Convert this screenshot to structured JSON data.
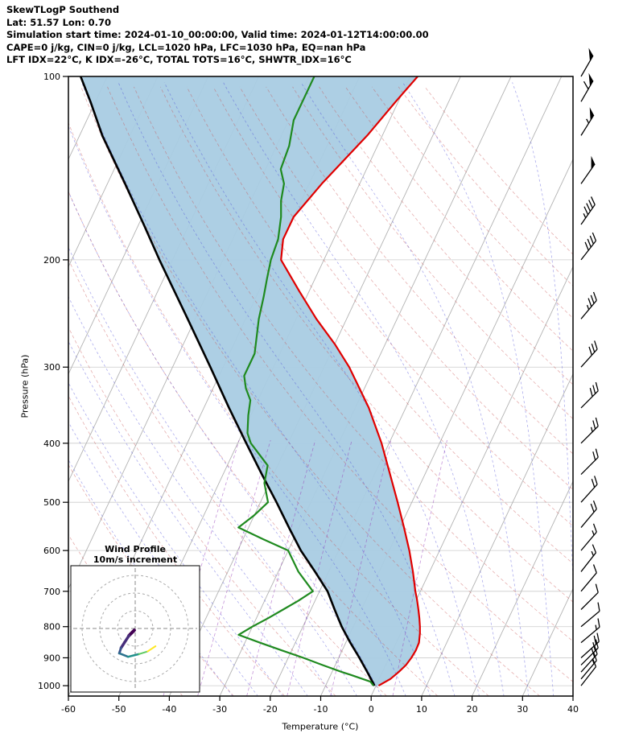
{
  "header": {
    "title": "SkewTLogP Southend",
    "location": "Lat: 51.57   Lon: 0.70",
    "times": "Simulation start time: 2024-01-10_00:00:00, Valid time: 2024-01-12T14:00:00.00",
    "indices1": "CAPE=0 j/kg, CIN=0 j/kg, LCL=1020 hPa, LFC=1030 hPa, EQ=nan hPa",
    "indices2": "LFT IDX=22°C, K IDX=-26°C, TOTAL TOTS=16°C, SHWTR_IDX=16°C"
  },
  "chart_data": {
    "type": "line",
    "subtype": "skew-t-log-p",
    "title": "SkewTLogP Southend",
    "xlabel": "Temperature (°C)",
    "ylabel": "Pressure (hPa)",
    "x_range": [
      -60,
      40
    ],
    "x_ticks": [
      -60,
      -50,
      -40,
      -30,
      -20,
      -10,
      0,
      10,
      20,
      30,
      40
    ],
    "p_ticks": [
      100,
      200,
      300,
      400,
      500,
      600,
      700,
      800,
      900,
      1000
    ],
    "p_range": [
      100,
      1040
    ],
    "colors": {
      "temperature": "#e00000",
      "dewpoint": "#1f8a1f",
      "parcel": "#000000",
      "shading": "#a9cce3",
      "isotherm": "#b3b3b3",
      "pressure_grid": "#cccccc",
      "dry_adiabat": "rgba(199,77,77,0.45)",
      "moist_adiabat": "rgba(72,72,214,0.45)",
      "mixing_ratio": "rgba(150,60,185,0.55)",
      "barb": "#000000"
    },
    "background": {
      "isotherms": {
        "start": -120,
        "end": 40,
        "step": 10
      },
      "dry_adiabats": {
        "theta_start": -40,
        "theta_end": 160,
        "step": 10
      },
      "moist_adiabats": {
        "t0_start": -30,
        "t0_end": 40,
        "step": 5
      },
      "mixing_ratio_gkg": [
        0.1,
        0.2,
        0.5,
        1,
        2,
        5
      ]
    },
    "series": [
      {
        "name": "temperature",
        "points": [
          [
            1000,
            0.5
          ],
          [
            975,
            2.2
          ],
          [
            950,
            3.2
          ],
          [
            925,
            4.0
          ],
          [
            900,
            4.4
          ],
          [
            875,
            4.6
          ],
          [
            850,
            4.5
          ],
          [
            820,
            3.8
          ],
          [
            800,
            3.2
          ],
          [
            775,
            2.3
          ],
          [
            750,
            1.3
          ],
          [
            720,
            0.0
          ],
          [
            700,
            -1.0
          ],
          [
            650,
            -3.3
          ],
          [
            600,
            -6.0
          ],
          [
            550,
            -9.2
          ],
          [
            500,
            -12.8
          ],
          [
            450,
            -16.9
          ],
          [
            400,
            -21.5
          ],
          [
            350,
            -27.3
          ],
          [
            325,
            -31.0
          ],
          [
            300,
            -35.0
          ],
          [
            275,
            -40.0
          ],
          [
            250,
            -46.0
          ],
          [
            225,
            -52.0
          ],
          [
            200,
            -58.5
          ],
          [
            185,
            -60.0
          ],
          [
            170,
            -60.0
          ],
          [
            150,
            -57.5
          ],
          [
            125,
            -53.0
          ],
          [
            110,
            -50.5
          ],
          [
            100,
            -48.5
          ]
        ]
      },
      {
        "name": "dewpoint",
        "points": [
          [
            1000,
            -0.5
          ],
          [
            985,
            -1.5
          ],
          [
            960,
            -6.0
          ],
          [
            950,
            -8.0
          ],
          [
            925,
            -12.5
          ],
          [
            900,
            -17.0
          ],
          [
            875,
            -22.0
          ],
          [
            850,
            -27.0
          ],
          [
            825,
            -32.0
          ],
          [
            800,
            -30.0
          ],
          [
            775,
            -27.7
          ],
          [
            750,
            -25.5
          ],
          [
            725,
            -23.3
          ],
          [
            700,
            -21.3
          ],
          [
            650,
            -26.0
          ],
          [
            600,
            -30.0
          ],
          [
            575,
            -36.0
          ],
          [
            550,
            -42.0
          ],
          [
            525,
            -40.0
          ],
          [
            500,
            -38.5
          ],
          [
            465,
            -41.0
          ],
          [
            435,
            -42.0
          ],
          [
            400,
            -47.4
          ],
          [
            385,
            -49.0
          ],
          [
            360,
            -50.5
          ],
          [
            340,
            -51.5
          ],
          [
            325,
            -53.5
          ],
          [
            310,
            -55.0
          ],
          [
            285,
            -55.0
          ],
          [
            250,
            -57.4
          ],
          [
            230,
            -58.5
          ],
          [
            215,
            -59.5
          ],
          [
            200,
            -60.5
          ],
          [
            185,
            -61.0
          ],
          [
            170,
            -62.5
          ],
          [
            160,
            -64.0
          ],
          [
            150,
            -65.0
          ],
          [
            142,
            -67.0
          ],
          [
            130,
            -67.5
          ],
          [
            118,
            -69.0
          ],
          [
            100,
            -69.0
          ]
        ]
      },
      {
        "name": "parcel",
        "points": [
          [
            1000,
            -0.3
          ],
          [
            950,
            -3.0
          ],
          [
            900,
            -5.9
          ],
          [
            850,
            -9.1
          ],
          [
            800,
            -12.3
          ],
          [
            750,
            -15.3
          ],
          [
            700,
            -18.4
          ],
          [
            650,
            -22.7
          ],
          [
            600,
            -27.5
          ],
          [
            550,
            -32.0
          ],
          [
            500,
            -36.8
          ],
          [
            450,
            -42.3
          ],
          [
            400,
            -48.3
          ],
          [
            350,
            -55.0
          ],
          [
            300,
            -62.5
          ],
          [
            250,
            -71.5
          ],
          [
            200,
            -82.6
          ],
          [
            175,
            -89.0
          ],
          [
            150,
            -96.5
          ],
          [
            125,
            -105.5
          ],
          [
            110,
            -111.0
          ],
          [
            100,
            -115.3
          ]
        ]
      }
    ],
    "shading_between": [
      "parcel",
      "temperature"
    ],
    "wind_barbs": [
      {
        "p": 100,
        "kt": 50,
        "dir": 30
      },
      {
        "p": 110,
        "kt": 60,
        "dir": 30
      },
      {
        "p": 125,
        "kt": 55,
        "dir": 32
      },
      {
        "p": 150,
        "kt": 50,
        "dir": 35
      },
      {
        "p": 175,
        "kt": 45,
        "dir": 35
      },
      {
        "p": 200,
        "kt": 40,
        "dir": 38
      },
      {
        "p": 250,
        "kt": 35,
        "dir": 40
      },
      {
        "p": 300,
        "kt": 30,
        "dir": 42
      },
      {
        "p": 350,
        "kt": 28,
        "dir": 45
      },
      {
        "p": 400,
        "kt": 25,
        "dir": 45
      },
      {
        "p": 450,
        "kt": 22,
        "dir": 45
      },
      {
        "p": 500,
        "kt": 20,
        "dir": 42
      },
      {
        "p": 550,
        "kt": 18,
        "dir": 40
      },
      {
        "p": 600,
        "kt": 15,
        "dir": 40
      },
      {
        "p": 650,
        "kt": 15,
        "dir": 38
      },
      {
        "p": 700,
        "kt": 12,
        "dir": 40
      },
      {
        "p": 750,
        "kt": 10,
        "dir": 45
      },
      {
        "p": 800,
        "kt": 12,
        "dir": 50
      },
      {
        "p": 850,
        "kt": 15,
        "dir": 50
      },
      {
        "p": 900,
        "kt": 18,
        "dir": 48
      },
      {
        "p": 925,
        "kt": 20,
        "dir": 45
      },
      {
        "p": 950,
        "kt": 18,
        "dir": 42
      },
      {
        "p": 975,
        "kt": 15,
        "dir": 40
      },
      {
        "p": 1000,
        "kt": 12,
        "dir": 38
      }
    ],
    "hodograph": {
      "title": "Wind Profile",
      "subtitle": "10m/s increment",
      "rings_ms": [
        10,
        20,
        30
      ],
      "ring_color": "#aaaaaa",
      "cross_color": "#888888",
      "trace_uv_ms": [
        [
          -0.5,
          -1
        ],
        [
          -3.5,
          -4
        ],
        [
          -8,
          -11
        ],
        [
          -9,
          -14
        ],
        [
          -4,
          -16
        ],
        [
          2,
          -14.5
        ],
        [
          7,
          -13
        ],
        [
          11.5,
          -10
        ]
      ],
      "trace_colors": [
        "#440154",
        "#472d7b",
        "#3b528b",
        "#2c728e",
        "#21918c",
        "#5ec962",
        "#fde725"
      ],
      "trace_widths": [
        4,
        3.5,
        3,
        2.5,
        2.5,
        2,
        2
      ]
    }
  }
}
